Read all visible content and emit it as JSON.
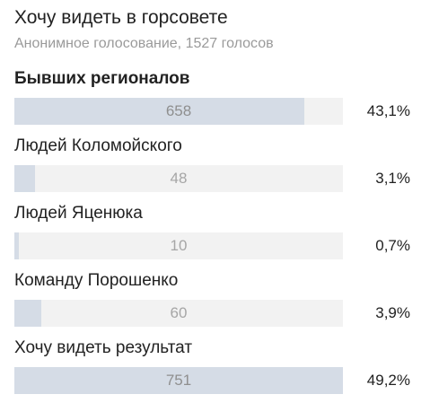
{
  "poll": {
    "title": "Хочу видеть в горсовете",
    "subtitle": "Анонимное голосование, 1527 голосов",
    "options": [
      {
        "label": "Бывших регионалов",
        "count": "658",
        "percent": "43,1%",
        "fraction": 0.882,
        "bold": true
      },
      {
        "label": "Людей Коломойского",
        "count": "48",
        "percent": "3,1%",
        "fraction": 0.063,
        "bold": false
      },
      {
        "label": "Людей Яценюка",
        "count": "10",
        "percent": "0,7%",
        "fraction": 0.013,
        "bold": false
      },
      {
        "label": "Команду Порошенко",
        "count": "60",
        "percent": "3,9%",
        "fraction": 0.081,
        "bold": false
      },
      {
        "label": "Хочу видеть результат",
        "count": "751",
        "percent": "49,2%",
        "fraction": 1.0,
        "bold": false
      }
    ]
  },
  "colors": {
    "bar_fill": "#d5dce6",
    "bar_track": "#f2f2f2"
  }
}
